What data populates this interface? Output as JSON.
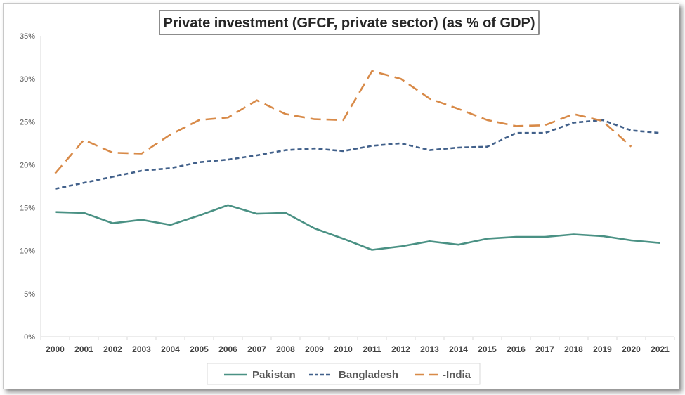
{
  "chart_data": {
    "type": "line",
    "title": "Private investment (GFCF, private sector) (as % of GDP)",
    "xlabel": "",
    "ylabel": "",
    "ylim": [
      0,
      35
    ],
    "y_ticks": [
      "0%",
      "5%",
      "10%",
      "15%",
      "20%",
      "25%",
      "30%",
      "35%"
    ],
    "y_tick_values": [
      0,
      5,
      10,
      15,
      20,
      25,
      30,
      35
    ],
    "grid": false,
    "legend_position": "bottom",
    "categories": [
      "2000",
      "2001",
      "2002",
      "2003",
      "2004",
      "2005",
      "2006",
      "2007",
      "2008",
      "2009",
      "2010",
      "2011",
      "2012",
      "2013",
      "2014",
      "2015",
      "2016",
      "2017",
      "2018",
      "2019",
      "2020",
      "2021"
    ],
    "series": [
      {
        "name": "Pakistan",
        "color": "#4a9184",
        "style": "solid",
        "values": [
          14.5,
          14.4,
          13.2,
          13.6,
          13.0,
          14.1,
          15.3,
          14.3,
          14.4,
          12.6,
          11.4,
          10.1,
          10.5,
          11.1,
          10.7,
          11.4,
          11.6,
          11.6,
          11.9,
          11.7,
          11.2,
          10.9
        ]
      },
      {
        "name": "Bangladesh",
        "color": "#41608a",
        "style": "short-dash",
        "values": [
          17.2,
          17.9,
          18.6,
          19.3,
          19.6,
          20.3,
          20.6,
          21.1,
          21.7,
          21.9,
          21.6,
          22.2,
          22.5,
          21.7,
          22.0,
          22.1,
          23.7,
          23.7,
          24.9,
          25.2,
          24.0,
          23.7
        ]
      },
      {
        "name": "-India",
        "color": "#d88a48",
        "style": "long-dash",
        "values": [
          19.0,
          22.9,
          21.4,
          21.3,
          23.5,
          25.2,
          25.5,
          27.5,
          25.9,
          25.3,
          25.2,
          30.9,
          30.0,
          27.7,
          26.5,
          25.2,
          24.5,
          24.6,
          25.9,
          25.1,
          22.1,
          null
        ]
      }
    ]
  }
}
